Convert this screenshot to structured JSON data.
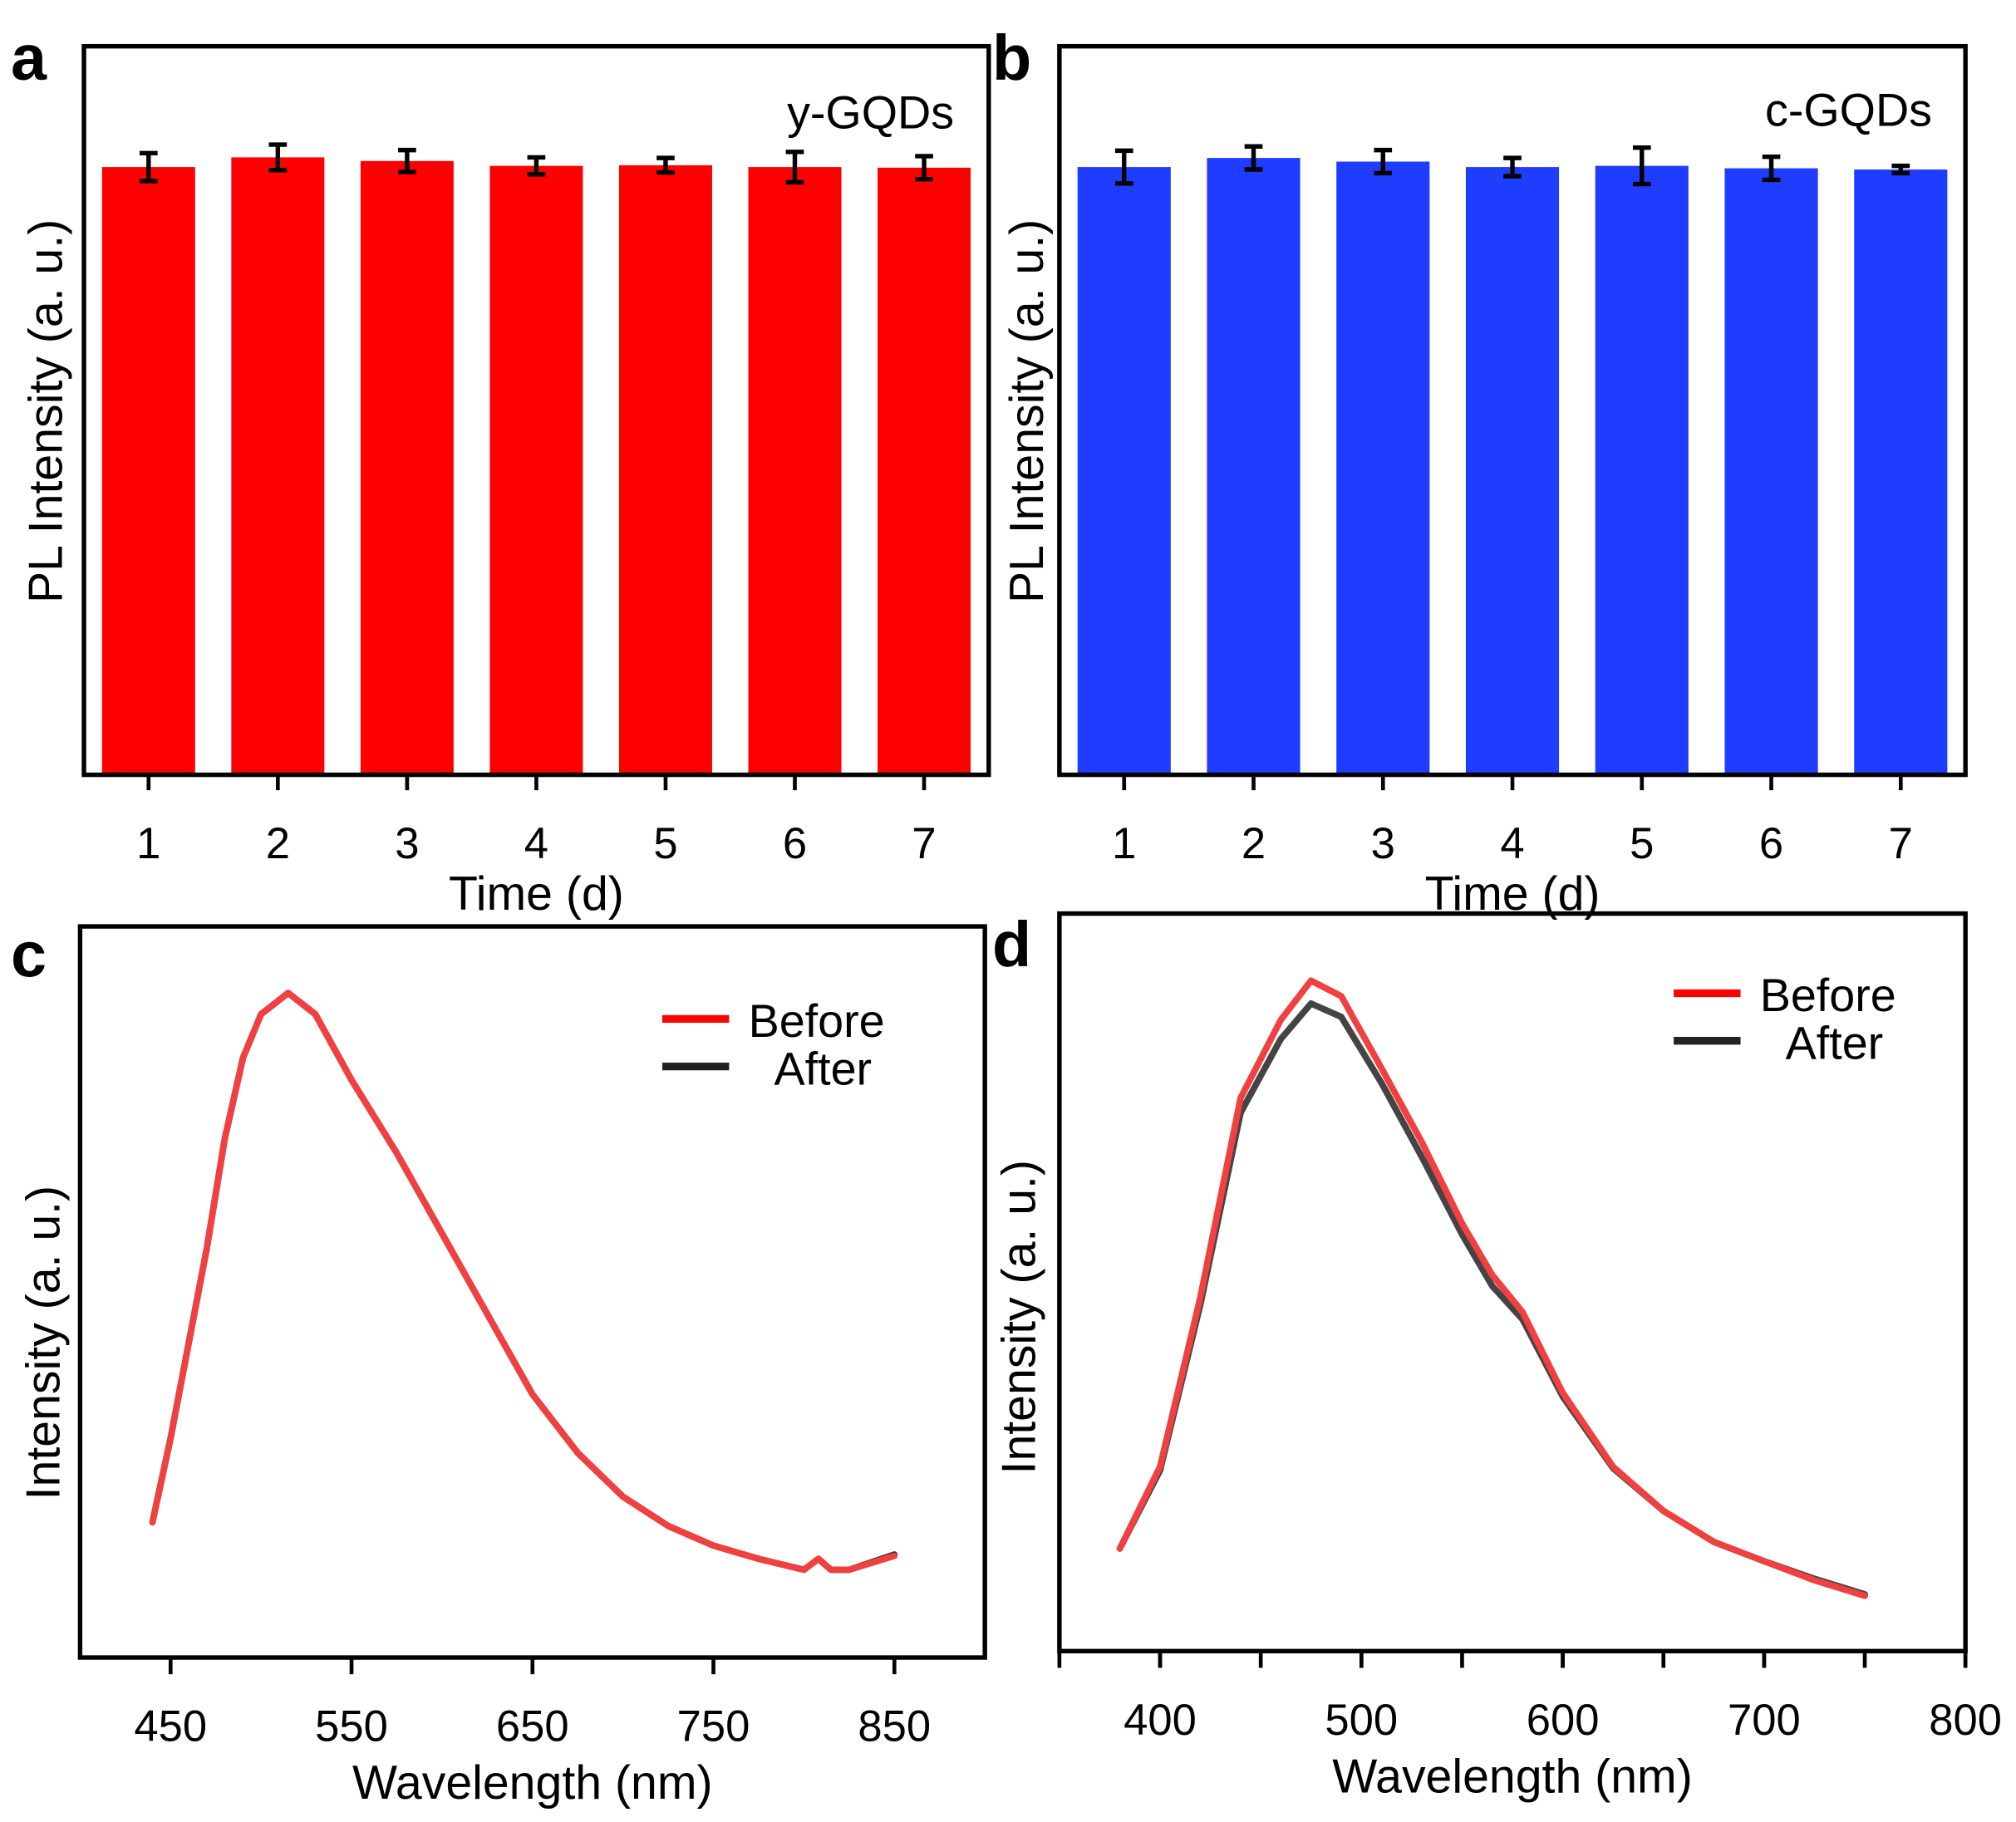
{
  "chart_data": [
    {
      "panel": "a",
      "type": "bar",
      "title": "y-GQDs",
      "xlabel": "Time (d)",
      "ylabel": "PL Intensity (a. u.)",
      "categories": [
        "1",
        "2",
        "3",
        "4",
        "5",
        "6",
        "7"
      ],
      "values": [
        1.001,
        1.017,
        1.011,
        1.003,
        1.004,
        1.001,
        1.0
      ],
      "errors": [
        0.023,
        0.021,
        0.018,
        0.014,
        0.012,
        0.025,
        0.019
      ],
      "ylim": [
        0,
        1.2
      ],
      "color": "#ff0000",
      "grid": false
    },
    {
      "panel": "b",
      "type": "bar",
      "title": "c-GQDs",
      "xlabel": "Time (d)",
      "ylabel": "PL Intensity (a. u.)",
      "categories": [
        "1",
        "2",
        "3",
        "4",
        "5",
        "6",
        "7"
      ],
      "values": [
        1.001,
        1.016,
        1.01,
        1.001,
        1.003,
        0.999,
        0.997
      ],
      "errors": [
        0.027,
        0.019,
        0.019,
        0.015,
        0.03,
        0.019,
        0.006
      ],
      "ylim": [
        0,
        1.2
      ],
      "color": "#1f3dff",
      "grid": false
    },
    {
      "panel": "c",
      "type": "line",
      "xlabel": "Wavelength  (nm)",
      "ylabel": "Intensity (a. u.)",
      "xlim": [
        400,
        900
      ],
      "ylim": [
        0,
        1
      ],
      "xticks": [
        "450",
        "550",
        "650",
        "750",
        "850"
      ],
      "legend_position": "top-right",
      "series": [
        {
          "name": "After",
          "color": "#333333",
          "x": [
            440,
            450,
            460,
            470,
            480,
            490,
            500,
            515,
            530,
            550,
            575,
            600,
            625,
            650,
            675,
            700,
            725,
            750,
            775,
            800,
            808,
            815,
            825,
            850
          ],
          "y": [
            0.185,
            0.3,
            0.43,
            0.56,
            0.71,
            0.82,
            0.88,
            0.909,
            0.88,
            0.79,
            0.69,
            0.58,
            0.47,
            0.36,
            0.28,
            0.22,
            0.18,
            0.153,
            0.135,
            0.12,
            0.135,
            0.12,
            0.12,
            0.141
          ]
        },
        {
          "name": "Before",
          "color": "#f04040",
          "x": [
            440,
            450,
            460,
            470,
            480,
            490,
            500,
            515,
            530,
            550,
            575,
            600,
            625,
            650,
            675,
            700,
            725,
            750,
            775,
            800,
            808,
            815,
            825,
            850
          ],
          "y": [
            0.185,
            0.3,
            0.43,
            0.56,
            0.71,
            0.82,
            0.88,
            0.909,
            0.88,
            0.79,
            0.69,
            0.58,
            0.47,
            0.36,
            0.28,
            0.22,
            0.18,
            0.153,
            0.135,
            0.12,
            0.135,
            0.12,
            0.12,
            0.139
          ]
        }
      ]
    },
    {
      "panel": "d",
      "type": "line",
      "xlabel": "Wavelength  (nm)",
      "ylabel": "Intensity (a. u.)",
      "xlim": [
        350,
        800
      ],
      "ylim": [
        0,
        1
      ],
      "xticks": [
        "400",
        "500",
        "600",
        "700",
        "800"
      ],
      "legend_position": "top-right",
      "series": [
        {
          "name": "After",
          "color": "#444444",
          "x": [
            380,
            400,
            420,
            440,
            460,
            475,
            490,
            510,
            530,
            550,
            565,
            580,
            600,
            625,
            650,
            675,
            700,
            725,
            750
          ],
          "y": [
            0.139,
            0.245,
            0.47,
            0.73,
            0.83,
            0.878,
            0.86,
            0.77,
            0.67,
            0.565,
            0.495,
            0.45,
            0.345,
            0.248,
            0.19,
            0.148,
            0.122,
            0.098,
            0.077
          ]
        },
        {
          "name": "Before",
          "color": "#f04040",
          "x": [
            380,
            400,
            420,
            440,
            460,
            475,
            490,
            510,
            530,
            550,
            565,
            580,
            600,
            625,
            650,
            675,
            700,
            725,
            750
          ],
          "y": [
            0.139,
            0.25,
            0.48,
            0.75,
            0.856,
            0.909,
            0.888,
            0.79,
            0.69,
            0.58,
            0.51,
            0.46,
            0.35,
            0.25,
            0.19,
            0.148,
            0.122,
            0.096,
            0.075
          ]
        }
      ]
    }
  ]
}
